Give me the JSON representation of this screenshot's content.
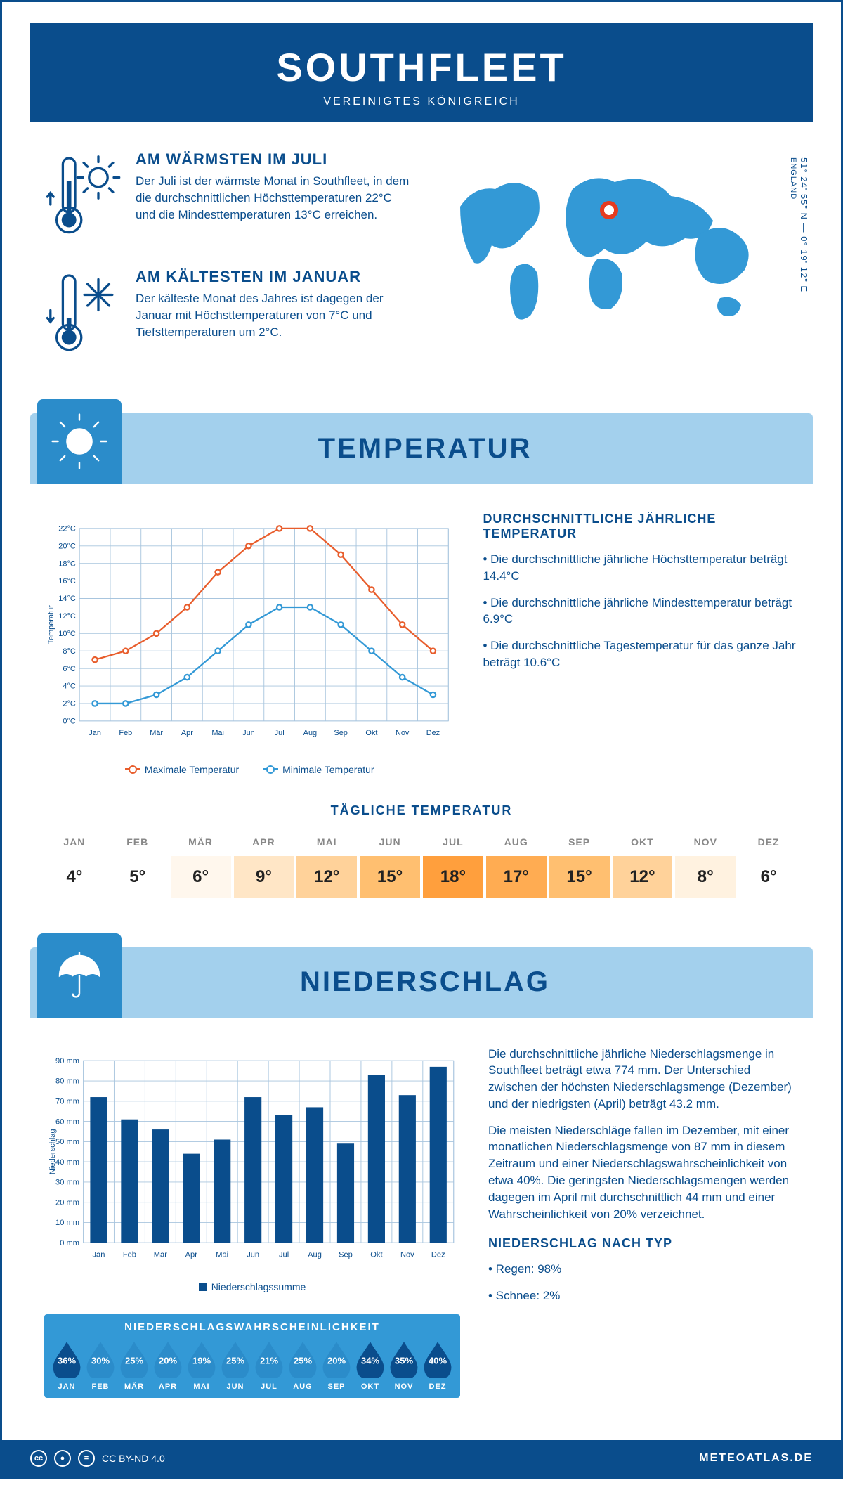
{
  "header": {
    "title": "SOUTHFLEET",
    "subtitle": "VEREINIGTES KÖNIGREICH"
  },
  "coords": {
    "lat": "51° 24' 55\" N",
    "lon": "0° 19' 12\" E",
    "country": "ENGLAND"
  },
  "warm": {
    "title": "AM WÄRMSTEN IM JULI",
    "text": "Der Juli ist der wärmste Monat in Southfleet, in dem die durchschnittlichen Höchsttemperaturen 22°C und die Mindesttemperaturen 13°C erreichen."
  },
  "cold": {
    "title": "AM KÄLTESTEN IM JANUAR",
    "text": "Der kälteste Monat des Jahres ist dagegen der Januar mit Höchsttemperaturen von 7°C und Tiefsttemperaturen um 2°C."
  },
  "sections": {
    "temp": "TEMPERATUR",
    "precip": "NIEDERSCHLAG"
  },
  "months": [
    "Jan",
    "Feb",
    "Mär",
    "Apr",
    "Mai",
    "Jun",
    "Jul",
    "Aug",
    "Sep",
    "Okt",
    "Nov",
    "Dez"
  ],
  "months_upper": [
    "JAN",
    "FEB",
    "MÄR",
    "APR",
    "MAI",
    "JUN",
    "JUL",
    "AUG",
    "SEP",
    "OKT",
    "NOV",
    "DEZ"
  ],
  "temp_chart": {
    "ylabel": "Temperatur",
    "ylim": [
      0,
      22
    ],
    "ytick_step": 2,
    "ytick_suffix": "°C",
    "max_series": [
      7,
      8,
      10,
      13,
      17,
      20,
      22,
      22,
      19,
      15,
      11,
      8
    ],
    "min_series": [
      2,
      2,
      3,
      5,
      8,
      11,
      13,
      13,
      11,
      8,
      5,
      3
    ],
    "max_color": "#e85d2c",
    "min_color": "#3399d6",
    "grid_color": "#a8c5de",
    "legend_max": "Maximale Temperatur",
    "legend_min": "Minimale Temperatur",
    "label_fontsize": 12
  },
  "temp_info": {
    "title": "DURCHSCHNITTLICHE JÄHRLICHE TEMPERATUR",
    "b1": "• Die durchschnittliche jährliche Höchsttemperatur beträgt 14.4°C",
    "b2": "• Die durchschnittliche jährliche Mindesttemperatur beträgt 6.9°C",
    "b3": "• Die durchschnittliche Tagestemperatur für das ganze Jahr beträgt 10.6°C"
  },
  "daily_temp": {
    "title": "TÄGLICHE TEMPERATUR",
    "values": [
      4,
      5,
      6,
      9,
      12,
      15,
      18,
      17,
      15,
      12,
      8,
      6
    ],
    "colors": [
      "#ffffff",
      "#ffffff",
      "#fff7ed",
      "#ffe6c6",
      "#ffd29a",
      "#ffbf70",
      "#ff9f3d",
      "#ffac52",
      "#ffbf70",
      "#ffd29a",
      "#fff2e0",
      "#ffffff"
    ]
  },
  "precip_chart": {
    "ylabel": "Niederschlag",
    "ylim": [
      0,
      90
    ],
    "ytick_step": 10,
    "ytick_suffix": " mm",
    "values": [
      72,
      61,
      56,
      44,
      51,
      72,
      63,
      67,
      49,
      83,
      73,
      87
    ],
    "bar_color": "#0a4d8c",
    "grid_color": "#a8c5de",
    "legend": "Niederschlagssumme",
    "bar_width": 0.55,
    "label_fontsize": 12
  },
  "precip_info": {
    "p1": "Die durchschnittliche jährliche Niederschlagsmenge in Southfleet beträgt etwa 774 mm. Der Unterschied zwischen der höchsten Niederschlagsmenge (Dezember) und der niedrigsten (April) beträgt 43.2 mm.",
    "p2": "Die meisten Niederschläge fallen im Dezember, mit einer monatlichen Niederschlagsmenge von 87 mm in diesem Zeitraum und einer Niederschlagswahrscheinlichkeit von etwa 40%. Die geringsten Niederschlagsmengen werden dagegen im April mit durchschnittlich 44 mm und einer Wahrscheinlichkeit von 20% verzeichnet.",
    "type_title": "NIEDERSCHLAG NACH TYP",
    "type1": "• Regen: 98%",
    "type2": "• Schnee: 2%"
  },
  "prob": {
    "title": "NIEDERSCHLAGSWAHRSCHEINLICHKEIT",
    "values": [
      36,
      30,
      25,
      20,
      19,
      25,
      21,
      25,
      20,
      34,
      35,
      40
    ],
    "color_light": "#2b8cca",
    "color_dark": "#0a4d8c"
  },
  "footer": {
    "license": "CC BY-ND 4.0",
    "site": "METEOATLAS.DE"
  },
  "colors": {
    "primary": "#0a4d8c",
    "secondary": "#3399d6",
    "band": "#a3d0ed",
    "accent": "#e85d2c"
  }
}
